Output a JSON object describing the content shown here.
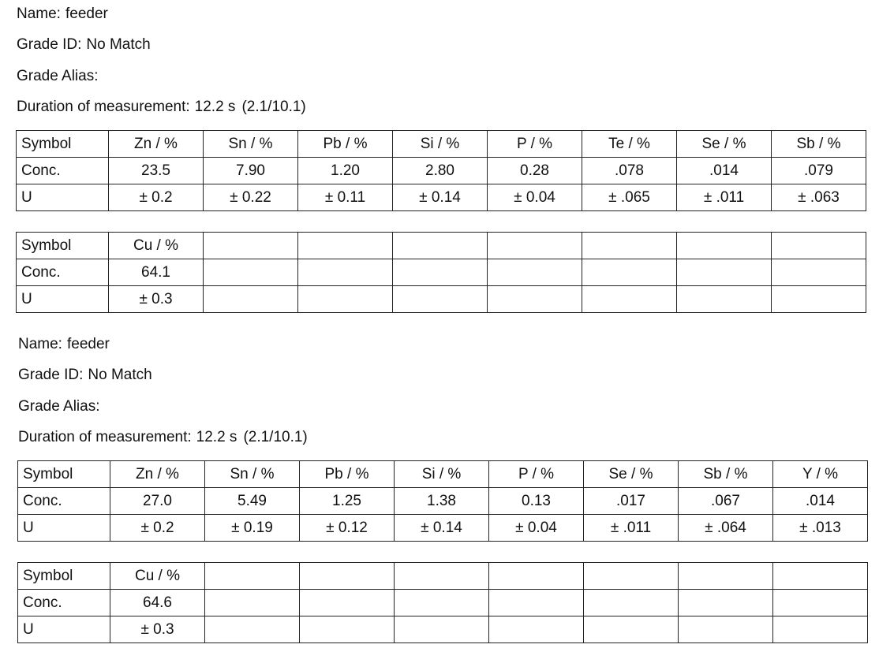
{
  "reports": [
    {
      "name_label": "Name:",
      "name": "feeder",
      "grade_id_label": "Grade ID:",
      "grade_id": "No Match",
      "grade_alias_label": "Grade Alias:",
      "grade_alias": "",
      "duration_label": "Duration of measurement:",
      "duration": "12.2 s",
      "duration_extra": "(2.1/10.1)",
      "tables": [
        {
          "rows": [
            [
              "Symbol",
              "Zn / %",
              "Sn / %",
              "Pb / %",
              "Si / %",
              "P / %",
              "Te / %",
              "Se / %",
              "Sb / %"
            ],
            [
              "Conc.",
              "23.5",
              "7.90",
              "1.20",
              "2.80",
              "0.28",
              ".078",
              ".014",
              ".079"
            ],
            [
              "U",
              "± 0.2",
              "± 0.22",
              "± 0.11",
              "± 0.14",
              "± 0.04",
              "± .065",
              "± .011",
              "± .063"
            ]
          ]
        },
        {
          "rows": [
            [
              "Symbol",
              "Cu / %",
              "",
              "",
              "",
              "",
              "",
              "",
              ""
            ],
            [
              "Conc.",
              "64.1",
              "",
              "",
              "",
              "",
              "",
              "",
              ""
            ],
            [
              "U",
              "± 0.3",
              "",
              "",
              "",
              "",
              "",
              "",
              ""
            ]
          ]
        }
      ]
    },
    {
      "name_label": "Name:",
      "name": "feeder",
      "grade_id_label": "Grade ID:",
      "grade_id": "No Match",
      "grade_alias_label": "Grade Alias:",
      "grade_alias": "",
      "duration_label": "Duration of measurement:",
      "duration": "12.2 s",
      "duration_extra": "(2.1/10.1)",
      "tables": [
        {
          "rows": [
            [
              "Symbol",
              "Zn / %",
              "Sn / %",
              "Pb / %",
              "Si / %",
              "P / %",
              "Se / %",
              "Sb / %",
              "Y / %"
            ],
            [
              "Conc.",
              "27.0",
              "5.49",
              "1.25",
              "1.38",
              "0.13",
              ".017",
              ".067",
              ".014"
            ],
            [
              "U",
              "± 0.2",
              "± 0.19",
              "± 0.12",
              "± 0.14",
              "± 0.04",
              "± .011",
              "± .064",
              "± .013"
            ]
          ]
        },
        {
          "rows": [
            [
              "Symbol",
              "Cu / %",
              "",
              "",
              "",
              "",
              "",
              "",
              ""
            ],
            [
              "Conc.",
              "64.6",
              "",
              "",
              "",
              "",
              "",
              "",
              ""
            ],
            [
              "U",
              "± 0.3",
              "",
              "",
              "",
              "",
              "",
              "",
              ""
            ]
          ]
        }
      ]
    }
  ]
}
